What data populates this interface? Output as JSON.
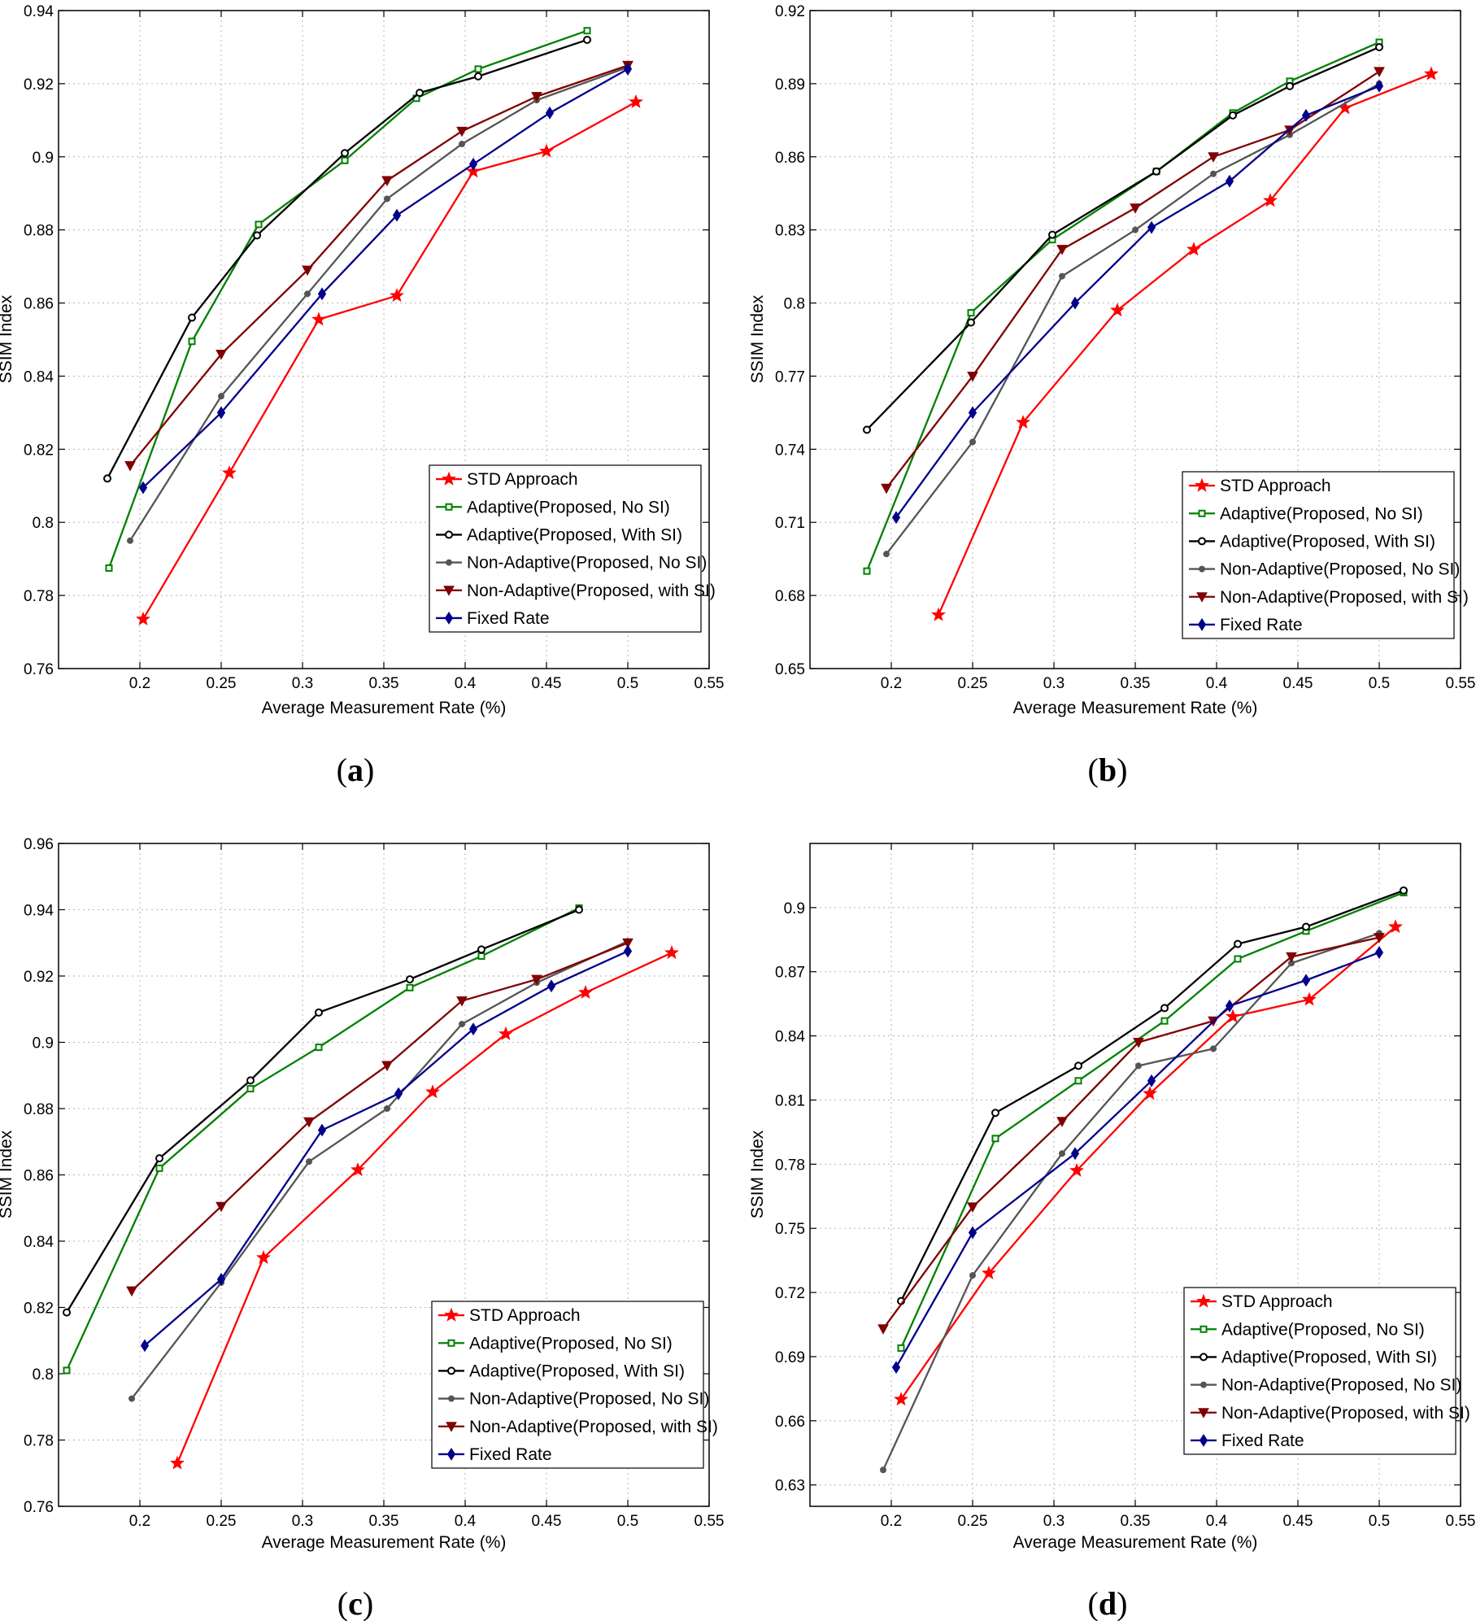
{
  "figure": {
    "series_styles": [
      {
        "name": "STD Approach",
        "color": "#ff0000",
        "marker": "star"
      },
      {
        "name": "Adaptive(Proposed, No SI)",
        "color": "#008000",
        "marker": "square"
      },
      {
        "name": "Adaptive(Proposed, With SI)",
        "color": "#000000",
        "marker": "circle"
      },
      {
        "name": "Non-Adaptive(Proposed, No SI)",
        "color": "#555555",
        "marker": "dot"
      },
      {
        "name": "Non-Adaptive(Proposed, with SI)",
        "color": "#800000",
        "marker": "triangle-down"
      },
      {
        "name": "Fixed Rate",
        "color": "#00008b",
        "marker": "diamond"
      }
    ]
  },
  "chart_data": [
    {
      "id": "a",
      "panel_label": "a",
      "type": "line",
      "xlabel": "Average Measurement Rate (%)",
      "ylabel": "SSIM Index",
      "xlim": [
        0.15,
        0.55
      ],
      "ylim": [
        0.76,
        0.94
      ],
      "xticks": [
        "0.2",
        "0.25",
        "0.3",
        "0.35",
        "0.4",
        "0.45",
        "0.5",
        "0.55"
      ],
      "yticks": [
        "0.76",
        "0.78",
        "0.8",
        "0.82",
        "0.84",
        "0.86",
        "0.88",
        "0.9",
        "0.92",
        "0.94"
      ],
      "legend": "bottom-right",
      "series": [
        {
          "name": "STD Approach",
          "x": [
            0.202,
            0.255,
            0.31,
            0.358,
            0.405,
            0.45,
            0.505
          ],
          "y": [
            0.7735,
            0.8135,
            0.8555,
            0.862,
            0.896,
            0.9015,
            0.915
          ]
        },
        {
          "name": "Adaptive(Proposed, No SI)",
          "x": [
            0.181,
            0.232,
            0.273,
            0.326,
            0.37,
            0.408,
            0.475
          ],
          "y": [
            0.7875,
            0.8495,
            0.8815,
            0.899,
            0.916,
            0.924,
            0.9345
          ]
        },
        {
          "name": "Adaptive(Proposed, With SI)",
          "x": [
            0.18,
            0.232,
            0.272,
            0.326,
            0.372,
            0.408,
            0.475
          ],
          "y": [
            0.812,
            0.856,
            0.8785,
            0.901,
            0.9175,
            0.922,
            0.932
          ]
        },
        {
          "name": "Non-Adaptive(Proposed, No SI)",
          "x": [
            0.194,
            0.25,
            0.303,
            0.352,
            0.398,
            0.444,
            0.5
          ],
          "y": [
            0.795,
            0.8345,
            0.8625,
            0.8885,
            0.9035,
            0.9155,
            0.9245
          ]
        },
        {
          "name": "Non-Adaptive(Proposed, with SI)",
          "x": [
            0.194,
            0.25,
            0.303,
            0.352,
            0.398,
            0.444,
            0.5
          ],
          "y": [
            0.8155,
            0.846,
            0.869,
            0.8935,
            0.907,
            0.9165,
            0.925
          ]
        },
        {
          "name": "Fixed Rate",
          "x": [
            0.202,
            0.25,
            0.312,
            0.358,
            0.405,
            0.452,
            0.5
          ],
          "y": [
            0.8095,
            0.83,
            0.8625,
            0.884,
            0.898,
            0.912,
            0.924
          ]
        }
      ]
    },
    {
      "id": "b",
      "panel_label": "b",
      "type": "line",
      "xlabel": "Average Measurement Rate (%)",
      "ylabel": "SSIM Index",
      "xlim": [
        0.15,
        0.55
      ],
      "ylim": [
        0.65,
        0.92
      ],
      "xticks": [
        "0.2",
        "0.25",
        "0.3",
        "0.35",
        "0.4",
        "0.45",
        "0.5",
        "0.55"
      ],
      "yticks": [
        "0.65",
        "0.68",
        "0.71",
        "0.74",
        "0.77",
        "0.8",
        "0.83",
        "0.86",
        "0.89",
        "0.92"
      ],
      "legend": "bottom-right",
      "series": [
        {
          "name": "STD Approach",
          "x": [
            0.229,
            0.281,
            0.339,
            0.386,
            0.433,
            0.479,
            0.532
          ],
          "y": [
            0.672,
            0.751,
            0.797,
            0.822,
            0.842,
            0.88,
            0.894
          ]
        },
        {
          "name": "Adaptive(Proposed, No SI)",
          "x": [
            0.185,
            0.249,
            0.299,
            0.363,
            0.41,
            0.445,
            0.5
          ],
          "y": [
            0.69,
            0.796,
            0.826,
            0.854,
            0.878,
            0.891,
            0.907
          ]
        },
        {
          "name": "Adaptive(Proposed, With SI)",
          "x": [
            0.185,
            0.249,
            0.299,
            0.363,
            0.41,
            0.445,
            0.5
          ],
          "y": [
            0.748,
            0.792,
            0.828,
            0.854,
            0.877,
            0.889,
            0.905
          ]
        },
        {
          "name": "Non-Adaptive(Proposed, No SI)",
          "x": [
            0.197,
            0.25,
            0.305,
            0.35,
            0.398,
            0.445,
            0.5
          ],
          "y": [
            0.697,
            0.743,
            0.811,
            0.83,
            0.853,
            0.869,
            0.89
          ]
        },
        {
          "name": "Non-Adaptive(Proposed, with SI)",
          "x": [
            0.197,
            0.25,
            0.305,
            0.35,
            0.398,
            0.445,
            0.5
          ],
          "y": [
            0.724,
            0.77,
            0.822,
            0.839,
            0.86,
            0.871,
            0.895
          ]
        },
        {
          "name": "Fixed Rate",
          "x": [
            0.203,
            0.25,
            0.313,
            0.36,
            0.408,
            0.455,
            0.5
          ],
          "y": [
            0.712,
            0.755,
            0.8,
            0.831,
            0.85,
            0.877,
            0.889
          ]
        }
      ]
    },
    {
      "id": "c",
      "panel_label": "c",
      "type": "line",
      "xlabel": "Average Measurement Rate (%)",
      "ylabel": "SSIM Index",
      "xlim": [
        0.15,
        0.55
      ],
      "ylim": [
        0.76,
        0.96
      ],
      "xticks": [
        "0.2",
        "0.25",
        "0.3",
        "0.35",
        "0.4",
        "0.45",
        "0.5",
        "0.55"
      ],
      "yticks": [
        "0.76",
        "0.78",
        "0.8",
        "0.82",
        "0.84",
        "0.86",
        "0.88",
        "0.9",
        "0.92",
        "0.94",
        "0.96"
      ],
      "legend": "bottom-right",
      "series": [
        {
          "name": "STD Approach",
          "x": [
            0.223,
            0.276,
            0.334,
            0.38,
            0.425,
            0.474,
            0.527
          ],
          "y": [
            0.773,
            0.835,
            0.8615,
            0.885,
            0.9025,
            0.915,
            0.927
          ]
        },
        {
          "name": "Adaptive(Proposed, No SI)",
          "x": [
            0.155,
            0.212,
            0.268,
            0.31,
            0.366,
            0.41,
            0.47
          ],
          "y": [
            0.801,
            0.862,
            0.886,
            0.8985,
            0.9165,
            0.926,
            0.9405
          ]
        },
        {
          "name": "Adaptive(Proposed, With SI)",
          "x": [
            0.155,
            0.212,
            0.268,
            0.31,
            0.366,
            0.41,
            0.47
          ],
          "y": [
            0.8185,
            0.865,
            0.8885,
            0.909,
            0.919,
            0.928,
            0.94
          ]
        },
        {
          "name": "Non-Adaptive(Proposed, No SI)",
          "x": [
            0.195,
            0.25,
            0.304,
            0.352,
            0.398,
            0.444,
            0.5
          ],
          "y": [
            0.7925,
            0.8275,
            0.864,
            0.88,
            0.9055,
            0.918,
            0.9305
          ]
        },
        {
          "name": "Non-Adaptive(Proposed, with SI)",
          "x": [
            0.195,
            0.25,
            0.304,
            0.352,
            0.398,
            0.444,
            0.5
          ],
          "y": [
            0.825,
            0.8505,
            0.876,
            0.893,
            0.9125,
            0.919,
            0.93
          ]
        },
        {
          "name": "Fixed Rate",
          "x": [
            0.203,
            0.25,
            0.312,
            0.359,
            0.405,
            0.453,
            0.5
          ],
          "y": [
            0.8085,
            0.8285,
            0.8735,
            0.8845,
            0.904,
            0.917,
            0.9275
          ]
        }
      ]
    },
    {
      "id": "d",
      "panel_label": "d",
      "type": "line",
      "xlabel": "Average Measurement Rate (%)",
      "ylabel": "SSIM Index",
      "xlim": [
        0.15,
        0.55
      ],
      "ylim": [
        0.62,
        0.93
      ],
      "xticks": [
        "0.2",
        "0.25",
        "0.3",
        "0.35",
        "0.4",
        "0.45",
        "0.5",
        "0.55"
      ],
      "yticks": [
        "0.63",
        "0.66",
        "0.69",
        "0.72",
        "0.75",
        "0.78",
        "0.81",
        "0.84",
        "0.87",
        "0.9"
      ],
      "legend": "bottom-right",
      "series": [
        {
          "name": "STD Approach",
          "x": [
            0.206,
            0.26,
            0.314,
            0.359,
            0.41,
            0.457,
            0.51
          ],
          "y": [
            0.67,
            0.729,
            0.777,
            0.813,
            0.849,
            0.857,
            0.891
          ]
        },
        {
          "name": "Adaptive(Proposed, No SI)",
          "x": [
            0.206,
            0.264,
            0.315,
            0.368,
            0.413,
            0.455,
            0.515
          ],
          "y": [
            0.694,
            0.792,
            0.819,
            0.847,
            0.876,
            0.889,
            0.907
          ]
        },
        {
          "name": "Adaptive(Proposed, With SI)",
          "x": [
            0.206,
            0.264,
            0.315,
            0.368,
            0.413,
            0.455,
            0.515
          ],
          "y": [
            0.716,
            0.804,
            0.826,
            0.853,
            0.883,
            0.891,
            0.908
          ]
        },
        {
          "name": "Non-Adaptive(Proposed, No SI)",
          "x": [
            0.195,
            0.25,
            0.305,
            0.352,
            0.398,
            0.446,
            0.5
          ],
          "y": [
            0.637,
            0.728,
            0.785,
            0.826,
            0.834,
            0.874,
            0.888
          ]
        },
        {
          "name": "Non-Adaptive(Proposed, with SI)",
          "x": [
            0.195,
            0.25,
            0.305,
            0.352,
            0.398,
            0.446,
            0.5
          ],
          "y": [
            0.703,
            0.76,
            0.8,
            0.837,
            0.847,
            0.877,
            0.886
          ]
        },
        {
          "name": "Fixed Rate",
          "x": [
            0.203,
            0.25,
            0.313,
            0.36,
            0.408,
            0.455,
            0.5
          ],
          "y": [
            0.685,
            0.748,
            0.785,
            0.819,
            0.854,
            0.866,
            0.879
          ]
        }
      ]
    }
  ]
}
